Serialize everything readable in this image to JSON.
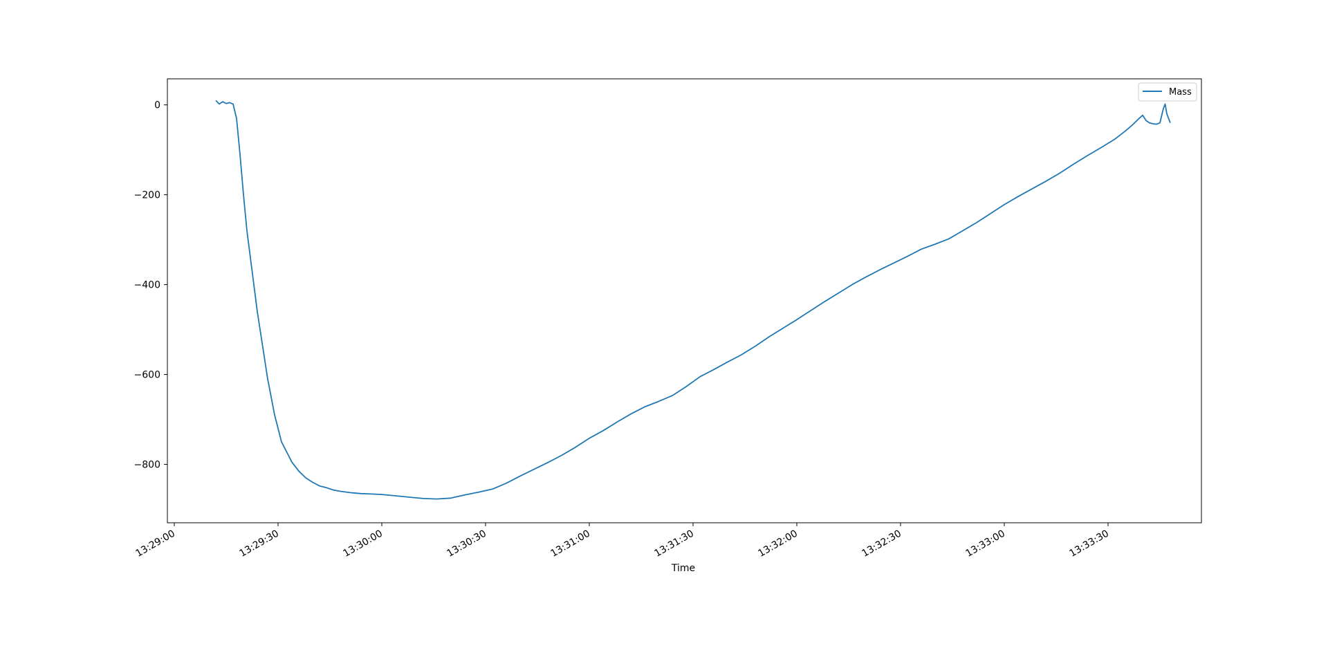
{
  "chart_data": {
    "type": "line",
    "xlabel": "Time",
    "ylabel": "",
    "x_tick_labels": [
      "13:29:00",
      "13:29:30",
      "13:30:00",
      "13:30:30",
      "13:31:00",
      "13:31:30",
      "13:32:00",
      "13:32:30",
      "13:33:00",
      "13:33:30"
    ],
    "y_ticks": [
      0,
      -200,
      -400,
      -600,
      -800
    ],
    "xlim": [
      "13:28:58",
      "13:33:57"
    ],
    "ylim": [
      -930,
      58
    ],
    "legend_position": "top-right",
    "grid": false,
    "series": [
      {
        "name": "Mass",
        "color": "#1f77b4",
        "points": [
          [
            "13:29:12",
            10
          ],
          [
            "13:29:13",
            2
          ],
          [
            "13:29:14",
            7
          ],
          [
            "13:29:15",
            3
          ],
          [
            "13:29:16",
            5
          ],
          [
            "13:29:17",
            2
          ],
          [
            "13:29:18",
            -30
          ],
          [
            "13:29:19",
            -110
          ],
          [
            "13:29:20",
            -200
          ],
          [
            "13:29:21",
            -280
          ],
          [
            "13:29:22",
            -340
          ],
          [
            "13:29:23",
            -400
          ],
          [
            "13:29:24",
            -460
          ],
          [
            "13:29:25",
            -510
          ],
          [
            "13:29:26",
            -560
          ],
          [
            "13:29:27",
            -610
          ],
          [
            "13:29:28",
            -650
          ],
          [
            "13:29:29",
            -690
          ],
          [
            "13:29:30",
            -720
          ],
          [
            "13:29:31",
            -750
          ],
          [
            "13:29:32",
            -765
          ],
          [
            "13:29:33",
            -780
          ],
          [
            "13:29:34",
            -795
          ],
          [
            "13:29:36",
            -815
          ],
          [
            "13:29:38",
            -830
          ],
          [
            "13:29:40",
            -840
          ],
          [
            "13:29:42",
            -848
          ],
          [
            "13:29:44",
            -852
          ],
          [
            "13:29:46",
            -857
          ],
          [
            "13:29:48",
            -860
          ],
          [
            "13:29:51",
            -863
          ],
          [
            "13:29:54",
            -865
          ],
          [
            "13:29:57",
            -866
          ],
          [
            "13:30:00",
            -867
          ],
          [
            "13:30:04",
            -870
          ],
          [
            "13:30:08",
            -873
          ],
          [
            "13:30:12",
            -876
          ],
          [
            "13:30:16",
            -877
          ],
          [
            "13:30:20",
            -875
          ],
          [
            "13:30:24",
            -868
          ],
          [
            "13:30:28",
            -862
          ],
          [
            "13:30:32",
            -855
          ],
          [
            "13:30:36",
            -842
          ],
          [
            "13:30:40",
            -826
          ],
          [
            "13:30:44",
            -811
          ],
          [
            "13:30:48",
            -796
          ],
          [
            "13:30:52",
            -780
          ],
          [
            "13:30:56",
            -762
          ],
          [
            "13:31:00",
            -742
          ],
          [
            "13:31:04",
            -725
          ],
          [
            "13:31:08",
            -706
          ],
          [
            "13:31:12",
            -688
          ],
          [
            "13:31:16",
            -672
          ],
          [
            "13:31:20",
            -660
          ],
          [
            "13:31:24",
            -647
          ],
          [
            "13:31:28",
            -627
          ],
          [
            "13:31:32",
            -605
          ],
          [
            "13:31:36",
            -589
          ],
          [
            "13:31:40",
            -572
          ],
          [
            "13:31:44",
            -556
          ],
          [
            "13:31:48",
            -537
          ],
          [
            "13:31:52",
            -516
          ],
          [
            "13:31:56",
            -497
          ],
          [
            "13:32:00",
            -478
          ],
          [
            "13:32:04",
            -458
          ],
          [
            "13:32:08",
            -438
          ],
          [
            "13:32:12",
            -419
          ],
          [
            "13:32:16",
            -400
          ],
          [
            "13:32:20",
            -383
          ],
          [
            "13:32:24",
            -367
          ],
          [
            "13:32:28",
            -352
          ],
          [
            "13:32:32",
            -337
          ],
          [
            "13:32:36",
            -321
          ],
          [
            "13:32:40",
            -310
          ],
          [
            "13:32:44",
            -298
          ],
          [
            "13:32:48",
            -280
          ],
          [
            "13:32:52",
            -262
          ],
          [
            "13:32:56",
            -242
          ],
          [
            "13:33:00",
            -222
          ],
          [
            "13:33:04",
            -204
          ],
          [
            "13:33:08",
            -187
          ],
          [
            "13:33:12",
            -170
          ],
          [
            "13:33:16",
            -152
          ],
          [
            "13:33:20",
            -132
          ],
          [
            "13:33:24",
            -113
          ],
          [
            "13:33:28",
            -95
          ],
          [
            "13:33:32",
            -76
          ],
          [
            "13:33:35",
            -58
          ],
          [
            "13:33:37",
            -45
          ],
          [
            "13:33:39",
            -30
          ],
          [
            "13:33:40",
            -23
          ],
          [
            "13:33:41",
            -35
          ],
          [
            "13:33:42",
            -40
          ],
          [
            "13:33:43",
            -42
          ],
          [
            "13:33:44",
            -43
          ],
          [
            "13:33:45",
            -40
          ],
          [
            "13:33:46",
            -8
          ],
          [
            "13:33:46.5",
            2
          ],
          [
            "13:33:47",
            -20
          ],
          [
            "13:33:48",
            -40
          ]
        ]
      }
    ]
  }
}
